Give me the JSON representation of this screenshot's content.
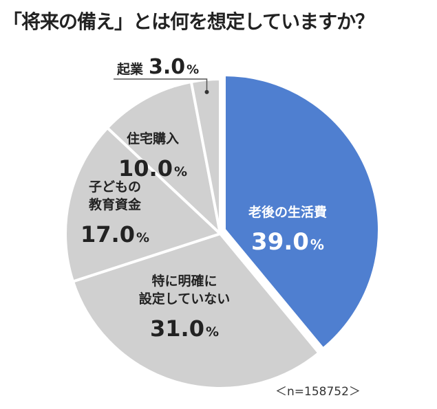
{
  "title": "「将来の備え」とは何を想定していますか？",
  "sample_note": "＜n=158752＞",
  "chart_data": {
    "type": "pie",
    "title": "「将来の備え」とは何を想定していますか？",
    "start": "12 o'clock",
    "direction": "clockwise",
    "slices": [
      {
        "label": "老後の生活費",
        "value": 39.0,
        "display": "39.0",
        "unit": "%",
        "color": "#4f7fd0",
        "text_color": "#ffffff",
        "highlight": true
      },
      {
        "label": "特に明確に設定していない",
        "value": 31.0,
        "display": "31.0",
        "unit": "%",
        "color": "#d0d0d0",
        "text_color": "#222222"
      },
      {
        "label": "子どもの教育資金",
        "value": 17.0,
        "display": "17.0",
        "unit": "%",
        "color": "#d0d0d0",
        "text_color": "#222222"
      },
      {
        "label": "住宅購入",
        "value": 10.0,
        "display": "10.0",
        "unit": "%",
        "color": "#d0d0d0",
        "text_color": "#222222"
      },
      {
        "label": "起業",
        "value": 3.0,
        "display": "3.0",
        "unit": "%",
        "color": "#d0d0d0",
        "text_color": "#222222"
      }
    ],
    "separator_color": "#ffffff"
  }
}
